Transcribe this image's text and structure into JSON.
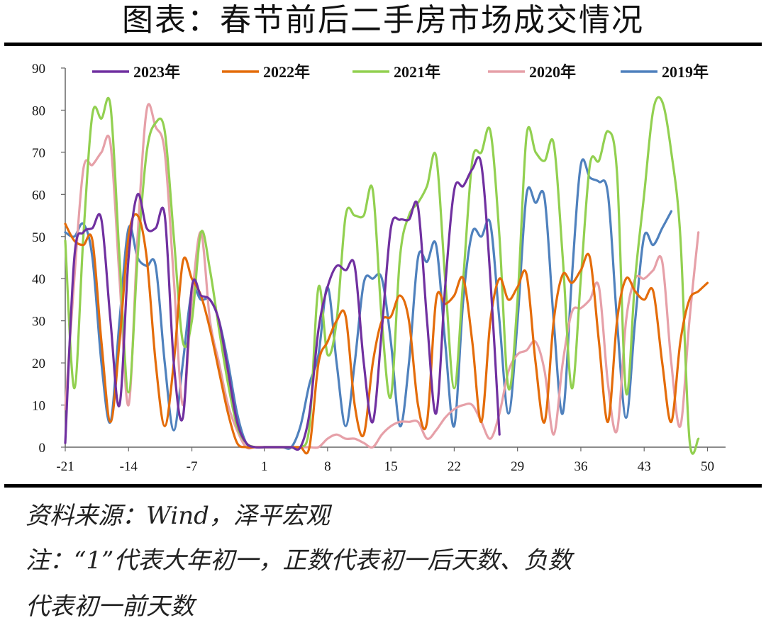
{
  "title": "图表：春节前后二手房市场成交情况",
  "source": "资料来源：Wind，泽平宏观",
  "note_line1": "注：“1”代表大年初一，正数代表初一后天数、负数",
  "note_line2": "代表初一前天数",
  "chart_data": {
    "type": "line",
    "title": "春节前后二手房市场成交情况",
    "xlabel": "",
    "ylabel": "",
    "xlim": [
      -21,
      52
    ],
    "ylim": [
      0,
      90
    ],
    "xticks": [
      -21,
      -14,
      -7,
      1,
      8,
      15,
      22,
      29,
      36,
      43,
      50
    ],
    "yticks": [
      0,
      10,
      20,
      30,
      40,
      50,
      60,
      70,
      80,
      90
    ],
    "legend_position": "top",
    "series": [
      {
        "name": "2023年",
        "color": "#7030a0",
        "points": [
          [
            -21,
            1
          ],
          [
            -20,
            45
          ],
          [
            -19,
            51
          ],
          [
            -18,
            52
          ],
          [
            -17,
            54
          ],
          [
            -16,
            30
          ],
          [
            -15,
            10
          ],
          [
            -14,
            45
          ],
          [
            -13,
            60
          ],
          [
            -12,
            52
          ],
          [
            -11,
            52
          ],
          [
            -10,
            55
          ],
          [
            -9,
            20
          ],
          [
            -8,
            7
          ],
          [
            -7,
            38
          ],
          [
            -6,
            36
          ],
          [
            -5,
            35
          ],
          [
            -4,
            30
          ],
          [
            -3,
            18
          ],
          [
            -2,
            6
          ],
          [
            -1,
            1
          ],
          [
            0,
            0
          ],
          [
            1,
            0
          ],
          [
            2,
            0
          ],
          [
            3,
            0
          ],
          [
            4,
            0
          ],
          [
            5,
            0
          ],
          [
            6,
            8
          ],
          [
            7,
            28
          ],
          [
            8,
            38
          ],
          [
            9,
            43
          ],
          [
            10,
            42
          ],
          [
            11,
            43
          ],
          [
            12,
            20
          ],
          [
            13,
            6
          ],
          [
            14,
            28
          ],
          [
            15,
            52
          ],
          [
            16,
            54
          ],
          [
            17,
            54
          ],
          [
            18,
            57
          ],
          [
            19,
            30
          ],
          [
            20,
            8
          ],
          [
            21,
            38
          ],
          [
            22,
            61
          ],
          [
            23,
            62
          ],
          [
            24,
            66
          ],
          [
            25,
            67
          ],
          [
            26,
            40
          ],
          [
            27,
            3
          ]
        ]
      },
      {
        "name": "2022年",
        "color": "#e46c0a",
        "points": [
          [
            -21,
            53
          ],
          [
            -20,
            49
          ],
          [
            -19,
            48
          ],
          [
            -18,
            49
          ],
          [
            -17,
            25
          ],
          [
            -16,
            6
          ],
          [
            -15,
            25
          ],
          [
            -14,
            50
          ],
          [
            -13,
            55
          ],
          [
            -12,
            45
          ],
          [
            -11,
            20
          ],
          [
            -10,
            5
          ],
          [
            -9,
            20
          ],
          [
            -8,
            44
          ],
          [
            -7,
            40
          ],
          [
            -6,
            36
          ],
          [
            -5,
            28
          ],
          [
            -4,
            18
          ],
          [
            -3,
            8
          ],
          [
            -2,
            1
          ],
          [
            -1,
            0
          ],
          [
            0,
            0
          ],
          [
            1,
            0
          ],
          [
            2,
            0
          ],
          [
            3,
            0
          ],
          [
            4,
            0
          ],
          [
            5,
            0
          ],
          [
            6,
            0
          ],
          [
            7,
            20
          ],
          [
            8,
            25
          ],
          [
            9,
            30
          ],
          [
            10,
            31
          ],
          [
            11,
            10
          ],
          [
            12,
            3
          ],
          [
            13,
            20
          ],
          [
            14,
            30
          ],
          [
            15,
            31
          ],
          [
            16,
            36
          ],
          [
            17,
            30
          ],
          [
            18,
            10
          ],
          [
            19,
            6
          ],
          [
            20,
            35
          ],
          [
            21,
            34
          ],
          [
            22,
            36
          ],
          [
            23,
            40
          ],
          [
            24,
            25
          ],
          [
            25,
            6
          ],
          [
            26,
            30
          ],
          [
            27,
            40
          ],
          [
            28,
            35
          ],
          [
            29,
            38
          ],
          [
            30,
            41
          ],
          [
            31,
            20
          ],
          [
            32,
            6
          ],
          [
            33,
            30
          ],
          [
            34,
            41
          ],
          [
            35,
            39
          ],
          [
            36,
            42
          ],
          [
            37,
            45
          ],
          [
            38,
            25
          ],
          [
            39,
            6
          ],
          [
            40,
            30
          ],
          [
            41,
            40
          ],
          [
            42,
            37
          ],
          [
            43,
            35
          ],
          [
            44,
            37
          ],
          [
            45,
            20
          ],
          [
            46,
            6
          ],
          [
            47,
            25
          ],
          [
            48,
            35
          ],
          [
            49,
            37
          ],
          [
            50,
            39
          ]
        ]
      },
      {
        "name": "2021年",
        "color": "#92d050",
        "points": [
          [
            -21,
            49
          ],
          [
            -20,
            14
          ],
          [
            -19,
            50
          ],
          [
            -18,
            79
          ],
          [
            -17,
            78
          ],
          [
            -16,
            81
          ],
          [
            -15,
            45
          ],
          [
            -14,
            13
          ],
          [
            -13,
            45
          ],
          [
            -12,
            70
          ],
          [
            -11,
            77
          ],
          [
            -10,
            75
          ],
          [
            -9,
            50
          ],
          [
            -8,
            25
          ],
          [
            -7,
            30
          ],
          [
            -6,
            51
          ],
          [
            -5,
            42
          ],
          [
            -4,
            28
          ],
          [
            -3,
            15
          ],
          [
            -2,
            5
          ],
          [
            -1,
            1
          ],
          [
            0,
            0
          ],
          [
            1,
            0
          ],
          [
            2,
            0
          ],
          [
            3,
            0
          ],
          [
            4,
            0
          ],
          [
            5,
            0
          ],
          [
            6,
            5
          ],
          [
            7,
            38
          ],
          [
            8,
            22
          ],
          [
            9,
            30
          ],
          [
            10,
            55
          ],
          [
            11,
            55
          ],
          [
            12,
            55
          ],
          [
            13,
            61
          ],
          [
            14,
            30
          ],
          [
            15,
            12
          ],
          [
            16,
            45
          ],
          [
            17,
            55
          ],
          [
            18,
            58
          ],
          [
            19,
            62
          ],
          [
            20,
            69
          ],
          [
            21,
            40
          ],
          [
            22,
            14
          ],
          [
            23,
            40
          ],
          [
            24,
            68
          ],
          [
            25,
            70
          ],
          [
            26,
            75
          ],
          [
            27,
            50
          ],
          [
            28,
            14
          ],
          [
            29,
            35
          ],
          [
            30,
            74
          ],
          [
            31,
            70
          ],
          [
            32,
            68
          ],
          [
            33,
            72
          ],
          [
            34,
            45
          ],
          [
            35,
            14
          ],
          [
            36,
            40
          ],
          [
            37,
            67
          ],
          [
            38,
            68
          ],
          [
            39,
            75
          ],
          [
            40,
            65
          ],
          [
            41,
            13
          ],
          [
            42,
            40
          ],
          [
            43,
            60
          ],
          [
            44,
            80
          ],
          [
            45,
            82
          ],
          [
            46,
            70
          ],
          [
            47,
            50
          ],
          [
            48,
            2
          ],
          [
            49,
            2
          ]
        ]
      },
      {
        "name": "2020年",
        "color": "#e6a0a8",
        "points": [
          [
            -21,
            9
          ],
          [
            -20,
            40
          ],
          [
            -19,
            66
          ],
          [
            -18,
            67
          ],
          [
            -17,
            70
          ],
          [
            -16,
            72
          ],
          [
            -15,
            40
          ],
          [
            -14,
            10
          ],
          [
            -13,
            50
          ],
          [
            -12,
            80
          ],
          [
            -11,
            76
          ],
          [
            -10,
            70
          ],
          [
            -9,
            40
          ],
          [
            -8,
            10
          ],
          [
            -7,
            35
          ],
          [
            -6,
            51
          ],
          [
            -5,
            30
          ],
          [
            -4,
            20
          ],
          [
            -3,
            10
          ],
          [
            -2,
            4
          ],
          [
            -1,
            0
          ],
          [
            0,
            0
          ],
          [
            1,
            0
          ],
          [
            2,
            0
          ],
          [
            3,
            0
          ],
          [
            4,
            0
          ],
          [
            5,
            0
          ],
          [
            6,
            0
          ],
          [
            7,
            0
          ],
          [
            8,
            2
          ],
          [
            9,
            3
          ],
          [
            10,
            2
          ],
          [
            11,
            2
          ],
          [
            12,
            1
          ],
          [
            13,
            0
          ],
          [
            14,
            3
          ],
          [
            15,
            5
          ],
          [
            16,
            6
          ],
          [
            17,
            6
          ],
          [
            18,
            6
          ],
          [
            19,
            2
          ],
          [
            20,
            4
          ],
          [
            21,
            7
          ],
          [
            22,
            9
          ],
          [
            23,
            10
          ],
          [
            24,
            10
          ],
          [
            25,
            6
          ],
          [
            26,
            2
          ],
          [
            27,
            8
          ],
          [
            28,
            18
          ],
          [
            29,
            22
          ],
          [
            30,
            23
          ],
          [
            31,
            25
          ],
          [
            32,
            18
          ],
          [
            33,
            3
          ],
          [
            34,
            20
          ],
          [
            35,
            32
          ],
          [
            36,
            33
          ],
          [
            37,
            35
          ],
          [
            38,
            38
          ],
          [
            39,
            15
          ],
          [
            40,
            4
          ],
          [
            41,
            30
          ],
          [
            42,
            40
          ],
          [
            43,
            40
          ],
          [
            44,
            42
          ],
          [
            45,
            44
          ],
          [
            46,
            20
          ],
          [
            47,
            5
          ],
          [
            48,
            30
          ],
          [
            49,
            51
          ]
        ]
      },
      {
        "name": "2019年",
        "color": "#4f81bd",
        "points": [
          [
            -21,
            51
          ],
          [
            -20,
            50
          ],
          [
            -19,
            53
          ],
          [
            -18,
            45
          ],
          [
            -17,
            20
          ],
          [
            -16,
            6
          ],
          [
            -15,
            30
          ],
          [
            -14,
            52
          ],
          [
            -13,
            45
          ],
          [
            -12,
            43
          ],
          [
            -11,
            43
          ],
          [
            -10,
            20
          ],
          [
            -9,
            4
          ],
          [
            -8,
            20
          ],
          [
            -7,
            37
          ],
          [
            -6,
            35
          ],
          [
            -5,
            35
          ],
          [
            -4,
            30
          ],
          [
            -3,
            20
          ],
          [
            -2,
            8
          ],
          [
            -1,
            1
          ],
          [
            0,
            0
          ],
          [
            1,
            0
          ],
          [
            2,
            0
          ],
          [
            3,
            0
          ],
          [
            4,
            0
          ],
          [
            5,
            5
          ],
          [
            6,
            15
          ],
          [
            7,
            22
          ],
          [
            8,
            38
          ],
          [
            9,
            20
          ],
          [
            10,
            5
          ],
          [
            11,
            20
          ],
          [
            12,
            39
          ],
          [
            13,
            40
          ],
          [
            14,
            40
          ],
          [
            15,
            25
          ],
          [
            16,
            5
          ],
          [
            17,
            20
          ],
          [
            18,
            45
          ],
          [
            19,
            44
          ],
          [
            20,
            48
          ],
          [
            21,
            25
          ],
          [
            22,
            5
          ],
          [
            23,
            35
          ],
          [
            24,
            51
          ],
          [
            25,
            50
          ],
          [
            26,
            53
          ],
          [
            27,
            30
          ],
          [
            28,
            8
          ],
          [
            29,
            30
          ],
          [
            30,
            60
          ],
          [
            31,
            58
          ],
          [
            32,
            59
          ],
          [
            33,
            30
          ],
          [
            34,
            8
          ],
          [
            35,
            40
          ],
          [
            36,
            67
          ],
          [
            37,
            64
          ],
          [
            38,
            63
          ],
          [
            39,
            60
          ],
          [
            40,
            30
          ],
          [
            41,
            7
          ],
          [
            42,
            30
          ],
          [
            43,
            50
          ],
          [
            44,
            48
          ],
          [
            45,
            52
          ],
          [
            46,
            56
          ]
        ]
      }
    ]
  }
}
